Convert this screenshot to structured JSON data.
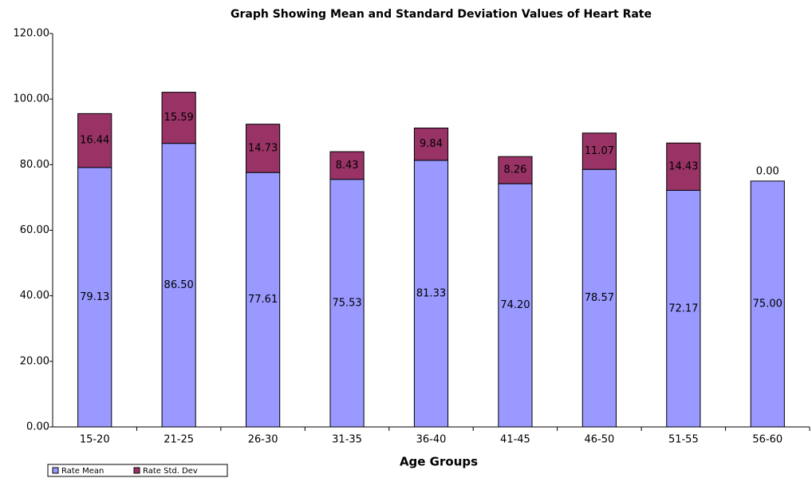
{
  "chart_data": {
    "type": "stacked_bar",
    "title": "Graph Showing Mean and Standard Deviation Values of Heart Rate",
    "x_label": "Age Groups",
    "categories": [
      "15-20",
      "21-25",
      "26-30",
      "31-35",
      "36-40",
      "41-45",
      "46-50",
      "51-55",
      "56-60"
    ],
    "series": [
      {
        "name": "Rate Mean",
        "color": "#9999ff",
        "values": [
          79.13,
          86.5,
          77.61,
          75.53,
          81.33,
          74.2,
          78.57,
          72.17,
          75
        ],
        "value_labels": [
          "79.13",
          "86.50",
          "77.61",
          "75.53",
          "81.33",
          "74.20",
          "78.57",
          "72.17",
          "75.00"
        ]
      },
      {
        "name": "Rate Std. Dev",
        "color": "#993366",
        "values": [
          16.44,
          15.59,
          14.73,
          8.43,
          9.84,
          8.26,
          11.07,
          14.43,
          0
        ],
        "value_labels": [
          "16.44",
          "15.59",
          "14.73",
          "8.43",
          "9.84",
          "8.26",
          "11.07",
          "14.43",
          "0.00"
        ]
      }
    ],
    "ylim": [
      0,
      120
    ],
    "yticks": [
      {
        "value": 0,
        "label": "0.00"
      },
      {
        "value": 20,
        "label": "20.00"
      },
      {
        "value": 40,
        "label": "40.00"
      },
      {
        "value": 60,
        "label": "60.00"
      },
      {
        "value": 80,
        "label": "80.00"
      },
      {
        "value": 100,
        "label": "100.00"
      },
      {
        "value": 120,
        "label": "120.00"
      }
    ],
    "grid": false,
    "legend": "bottom-left"
  }
}
